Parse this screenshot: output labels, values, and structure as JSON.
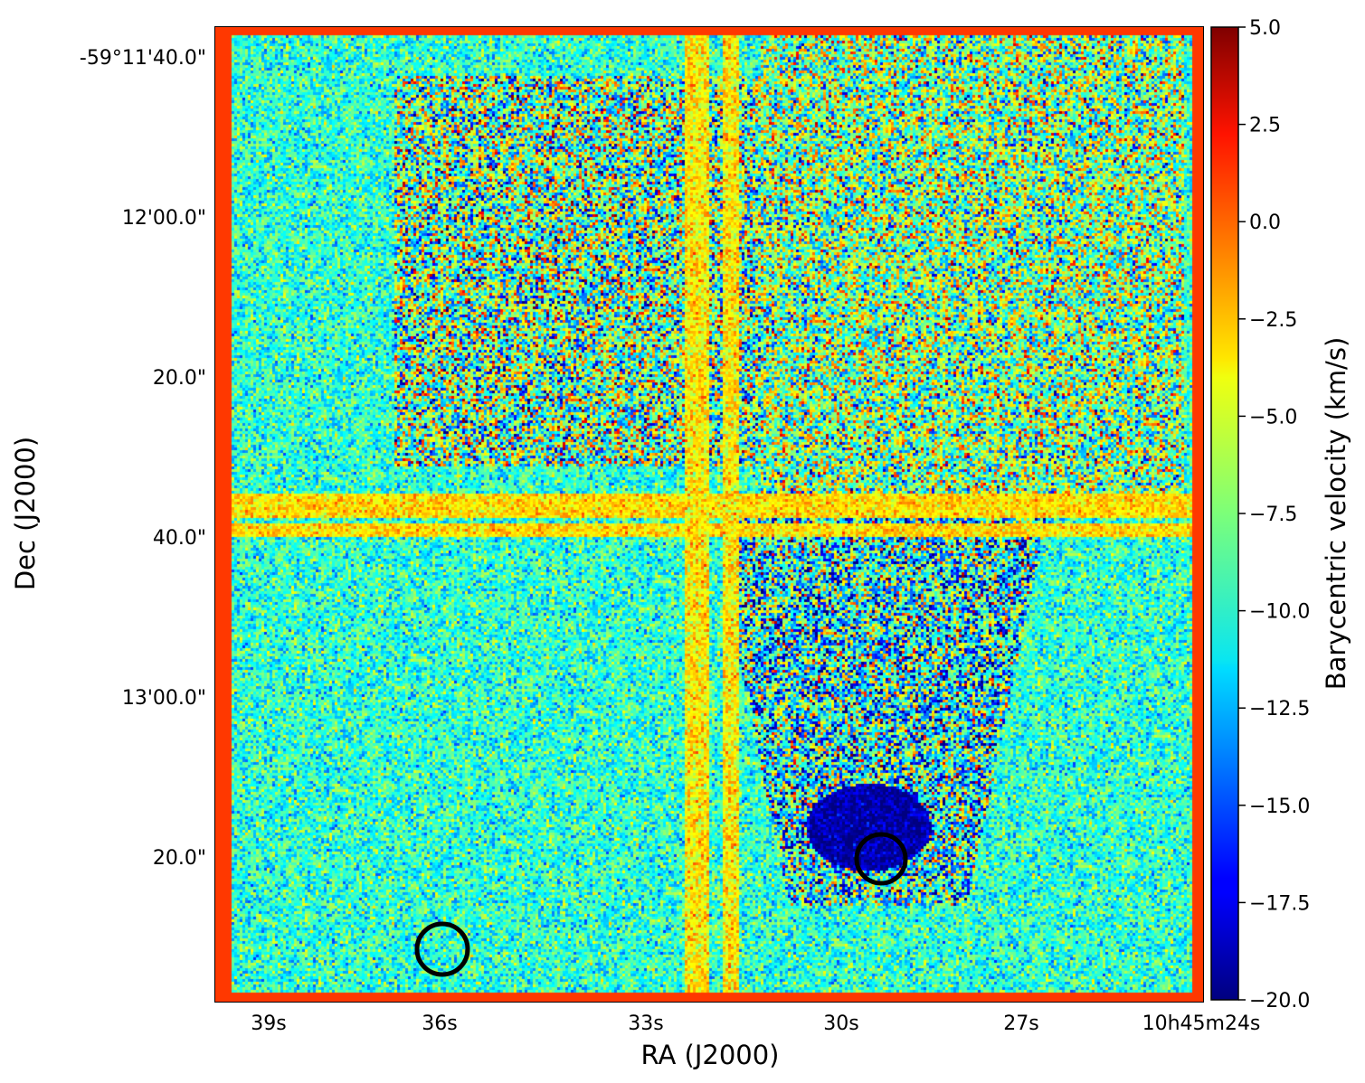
{
  "chart_data": {
    "type": "heatmap",
    "title": "",
    "xlabel": "RA (J2000)",
    "ylabel": "Dec (J2000)",
    "x_ticks": [
      "39s",
      "36s",
      "33s",
      "30s",
      "27s",
      "10h45m24s"
    ],
    "y_ticks": [
      "-59°11'40.0\"",
      "12'00.0\"",
      "20.0\"",
      "40.0\"",
      "13'00.0\"",
      "20.0\""
    ],
    "colorbar": {
      "label": "Barycentric velocity (km/s)",
      "colormap": "jet",
      "range": [
        -20.0,
        5.0
      ],
      "ticks": [
        "5.0",
        "2.5",
        "0.0",
        "−2.5",
        "−5.0",
        "−7.5",
        "−10.0",
        "−12.5",
        "−15.0",
        "−17.5",
        "−20.0"
      ]
    },
    "markers": [
      {
        "shape": "circle",
        "ra": "10h45m29.4s",
        "dec": "-59°13'20.0\"",
        "color": "#000000"
      },
      {
        "shape": "circle",
        "ra": "10h45m36.3s",
        "dec": "-59°13'31.0\"",
        "color": "#000000"
      }
    ],
    "grid": false
  }
}
